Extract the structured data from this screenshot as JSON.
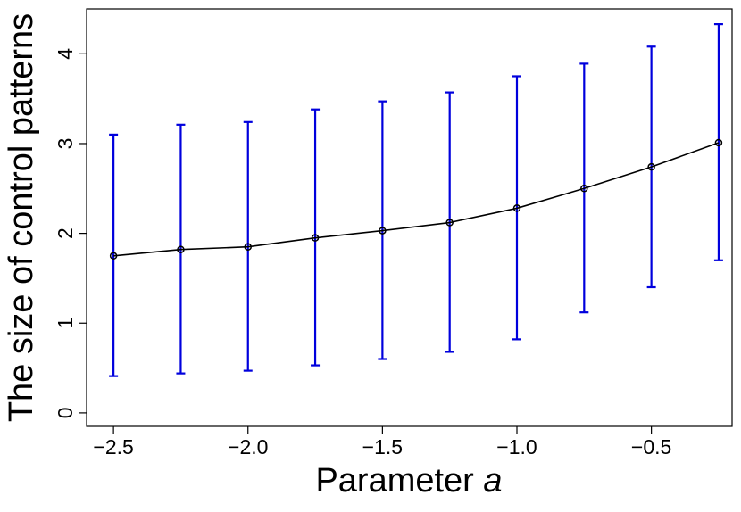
{
  "chart_data": {
    "type": "line",
    "title": "",
    "xlabel": "Parameter",
    "xlabel_italic": "a",
    "ylabel": "The size of control patterns",
    "xlim": [
      -2.6,
      -0.2
    ],
    "ylim": [
      -0.15,
      4.5
    ],
    "x_ticks": [
      {
        "value": -2.5,
        "label": "−2.5"
      },
      {
        "value": -2.0,
        "label": "−2.0"
      },
      {
        "value": -1.5,
        "label": "−1.5"
      },
      {
        "value": -1.0,
        "label": "−1.0"
      },
      {
        "value": -0.5,
        "label": "−0.5"
      }
    ],
    "y_ticks": [
      {
        "value": 0,
        "label": "0"
      },
      {
        "value": 1,
        "label": "1"
      },
      {
        "value": 2,
        "label": "2"
      },
      {
        "value": 3,
        "label": "3"
      },
      {
        "value": 4,
        "label": "4"
      }
    ],
    "series": [
      {
        "x": [
          -2.5,
          -2.25,
          -2.0,
          -1.75,
          -1.5,
          -1.25,
          -1.0,
          -0.75,
          -0.5,
          -0.25
        ],
        "y": [
          1.75,
          1.82,
          1.85,
          1.95,
          2.03,
          2.12,
          2.28,
          2.5,
          2.74,
          3.01
        ],
        "y_low": [
          0.41,
          0.44,
          0.47,
          0.53,
          0.6,
          0.68,
          0.82,
          1.12,
          1.4,
          1.7
        ],
        "y_high": [
          3.1,
          3.21,
          3.24,
          3.38,
          3.47,
          3.57,
          3.75,
          3.89,
          4.08,
          4.33
        ],
        "line_color": "#000000",
        "errorbar_color": "#0000dd"
      }
    ],
    "grid": false,
    "legend": "none"
  }
}
